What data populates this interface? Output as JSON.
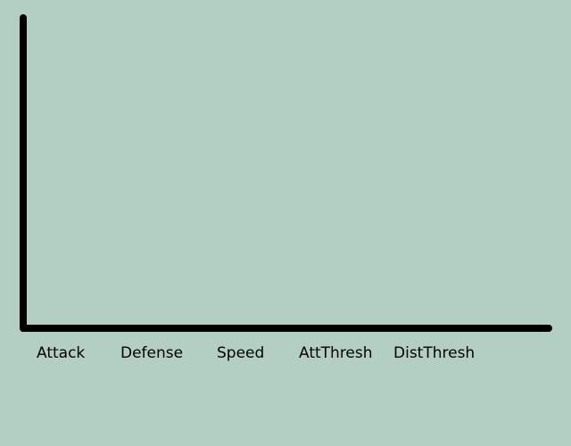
{
  "chart_data": {
    "type": "bar",
    "categories": [
      "Attack",
      "Defense",
      "Speed",
      "AttThresh",
      "DistThresh"
    ],
    "values": [
      0,
      0,
      0,
      0,
      0
    ],
    "title": "",
    "xlabel": "",
    "ylabel": "",
    "grid": false
  },
  "colors": {
    "background": "#b3cfc3",
    "axis": "#000000",
    "text": "#000000"
  }
}
